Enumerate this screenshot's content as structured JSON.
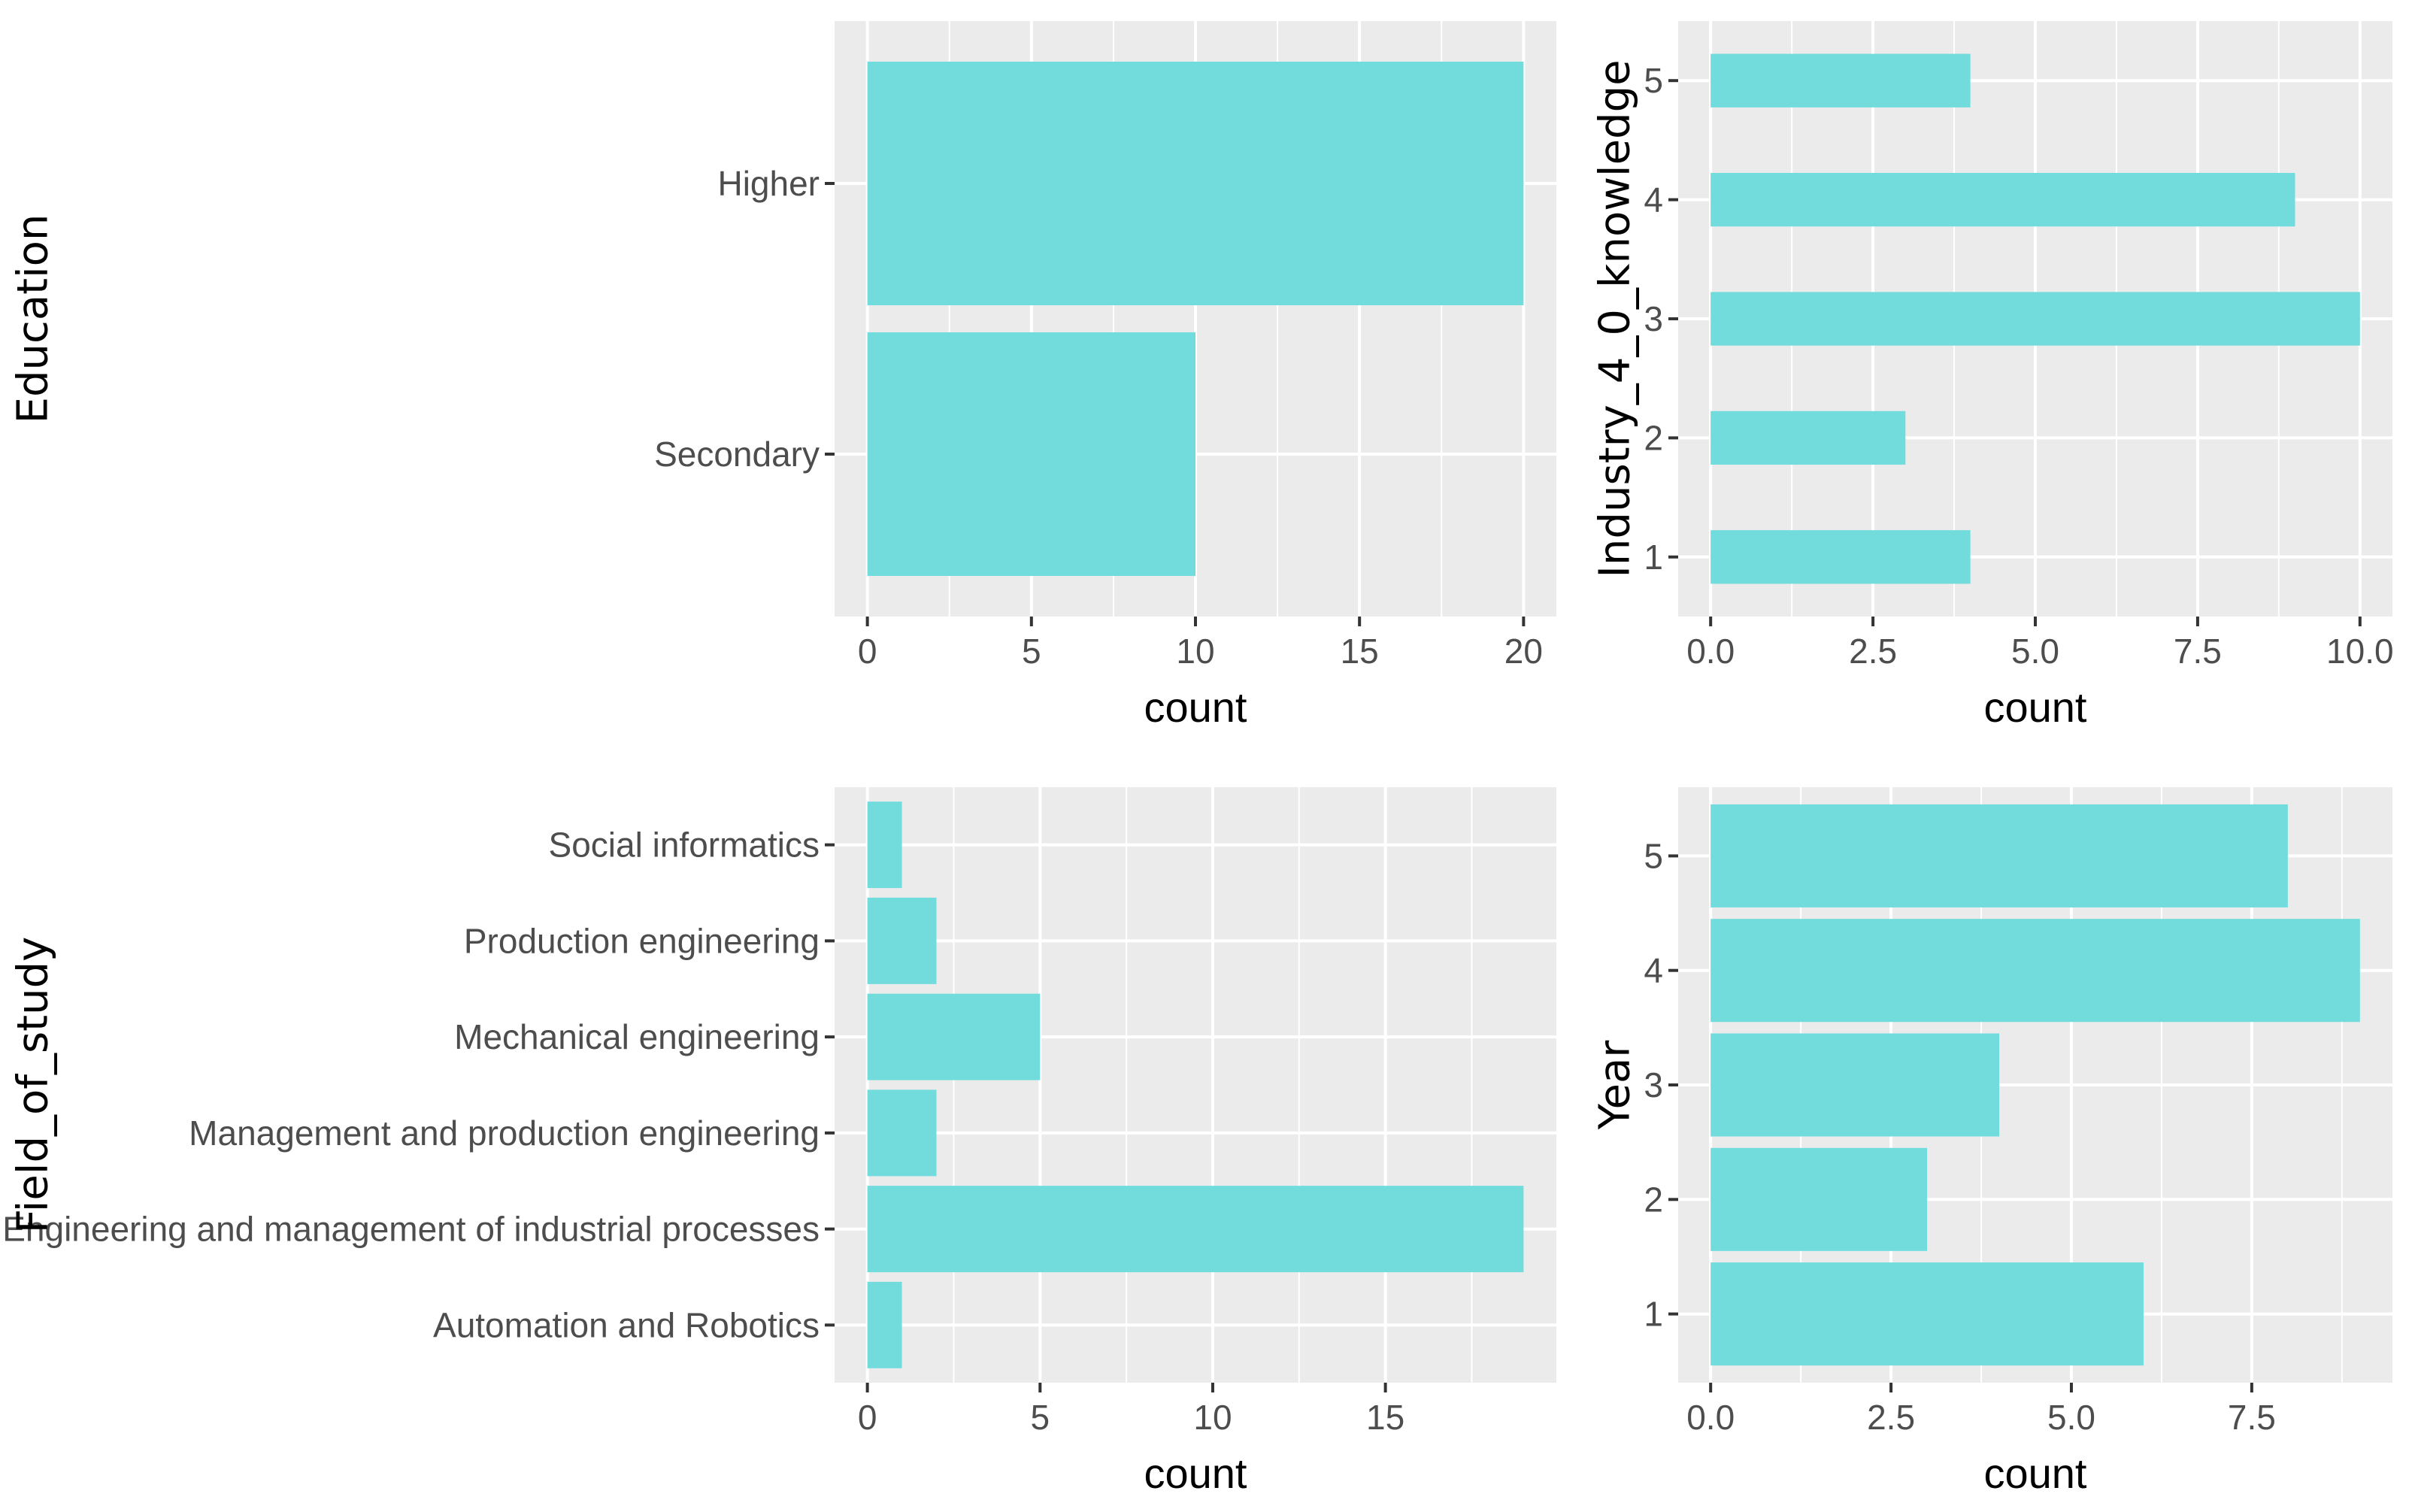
{
  "colors": {
    "panel_background": "#ebebeb",
    "grid": "#ffffff",
    "bar_fill": "#72dcdd",
    "tick_mark": "#333333"
  },
  "chart_data": [
    {
      "id": "education",
      "type": "bar",
      "orientation": "horizontal",
      "ylabel": "Education",
      "xlabel": "count",
      "categories": [
        "Secondary",
        "Higher"
      ],
      "values": [
        10,
        20
      ],
      "xlim": [
        -1,
        21
      ],
      "xticks": [
        0,
        5,
        10,
        15,
        20
      ],
      "xtick_labels": [
        "0",
        "5",
        "10",
        "15",
        "20"
      ],
      "bar_width": 0.9
    },
    {
      "id": "industry",
      "type": "bar",
      "orientation": "horizontal",
      "ylabel": "Industry_4_0_knowledge",
      "xlabel": "count",
      "categories": [
        "1",
        "2",
        "3",
        "4",
        "5"
      ],
      "y_positions": [
        1,
        2,
        3,
        4,
        5
      ],
      "values": [
        4,
        3,
        10,
        9,
        4
      ],
      "xlim": [
        -0.5,
        10.5
      ],
      "ylim": [
        0.5,
        5.5
      ],
      "xticks": [
        0,
        2.5,
        5,
        7.5,
        10
      ],
      "xtick_labels": [
        "0.0",
        "2.5",
        "5.0",
        "7.5",
        "10.0"
      ],
      "bar_width": 0.45
    },
    {
      "id": "field",
      "type": "bar",
      "orientation": "horizontal",
      "ylabel": "Field_of_study",
      "xlabel": "count",
      "categories": [
        "Automation and Robotics",
        "Engineering and management of industrial processes",
        "Management and production engineering",
        "Mechanical engineering",
        "Production engineering",
        "Social informatics"
      ],
      "values": [
        1,
        19,
        2,
        5,
        2,
        1
      ],
      "xlim": [
        -0.95,
        19.95
      ],
      "xticks": [
        0,
        5,
        10,
        15
      ],
      "xtick_labels": [
        "0",
        "5",
        "10",
        "15"
      ],
      "bar_width": 0.9
    },
    {
      "id": "year",
      "type": "bar",
      "orientation": "horizontal",
      "ylabel": "Year",
      "xlabel": "count",
      "categories": [
        "1",
        "2",
        "3",
        "4",
        "5"
      ],
      "y_positions": [
        1,
        2,
        3,
        4,
        5
      ],
      "values": [
        6,
        3,
        4,
        9,
        8
      ],
      "xlim": [
        -0.45,
        9.45
      ],
      "ylim": [
        0.4,
        5.6
      ],
      "xticks": [
        0,
        2.5,
        5,
        7.5
      ],
      "xtick_labels": [
        "0.0",
        "2.5",
        "5.0",
        "7.5"
      ],
      "bar_width": 0.9
    }
  ]
}
